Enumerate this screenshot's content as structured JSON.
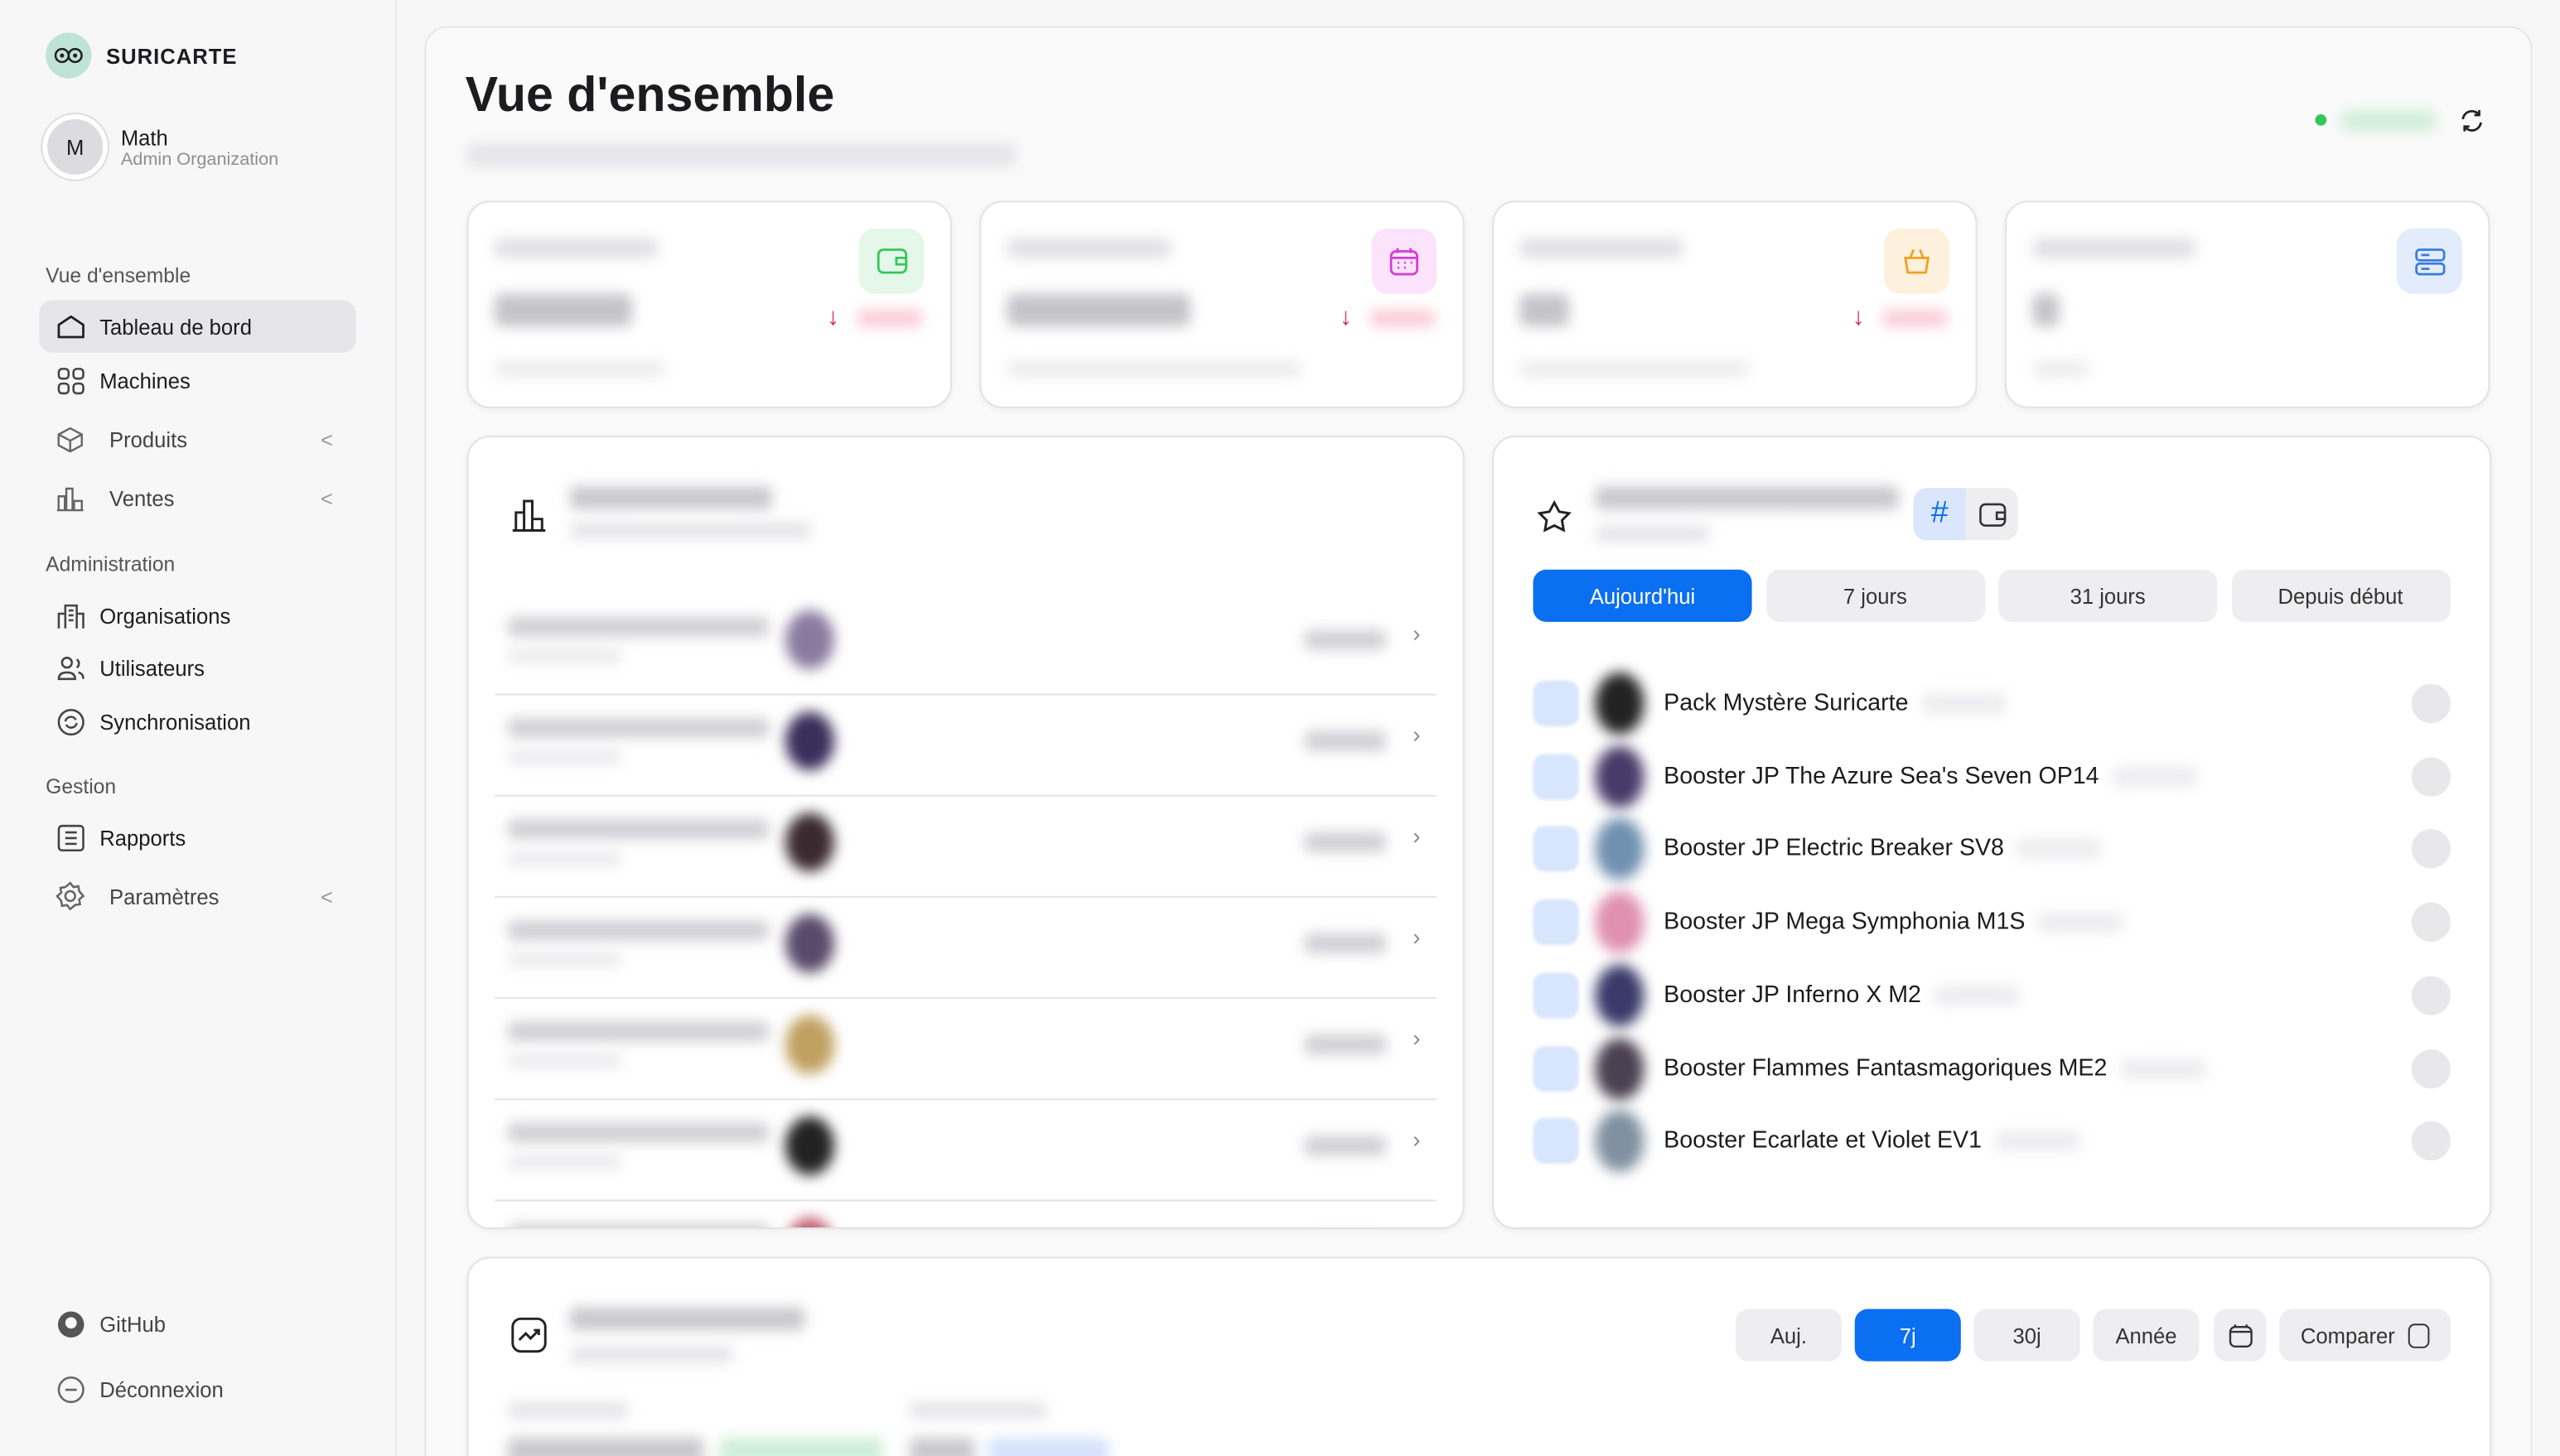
{
  "brand": {
    "name": "SURICARTE"
  },
  "user": {
    "initial": "M",
    "name": "Math",
    "role": "Admin Organization"
  },
  "sidebar": {
    "sections": [
      {
        "label": "Vue d'ensemble",
        "items": [
          {
            "label": "Tableau de bord",
            "icon": "home-icon",
            "active": true
          },
          {
            "label": "Machines",
            "icon": "grid-icon"
          },
          {
            "label": "Produits",
            "icon": "box-icon",
            "expandable": true
          },
          {
            "label": "Ventes",
            "icon": "bar-chart-icon",
            "expandable": true
          }
        ]
      },
      {
        "label": "Administration",
        "items": [
          {
            "label": "Organisations",
            "icon": "building-icon"
          },
          {
            "label": "Utilisateurs",
            "icon": "users-icon"
          },
          {
            "label": "Synchronisation",
            "icon": "sync-icon"
          }
        ]
      },
      {
        "label": "Gestion",
        "items": [
          {
            "label": "Rapports",
            "icon": "report-icon"
          },
          {
            "label": "Paramètres",
            "icon": "gear-icon",
            "expandable": true
          }
        ]
      }
    ],
    "footer": [
      {
        "label": "GitHub",
        "icon": "github-icon"
      },
      {
        "label": "Déconnexion",
        "icon": "logout-icon"
      }
    ],
    "chevron": "<"
  },
  "header": {
    "title": "Vue d'ensemble",
    "status_color": "#34c759"
  },
  "stats": [
    {
      "icon": "wallet-icon",
      "color": "#34c759",
      "bg": "#e4f7e9",
      "trend": "down"
    },
    {
      "icon": "calendar-icon",
      "color": "#d63bd6",
      "bg": "#fbe4fb",
      "trend": "down"
    },
    {
      "icon": "basket-icon",
      "color": "#f0a020",
      "bg": "#fdf0dc",
      "trend": "down"
    },
    {
      "icon": "server-icon",
      "color": "#3a7be0",
      "bg": "#e2ecfb"
    }
  ],
  "top_products": {
    "toggle": [
      {
        "label": "#",
        "active": true
      },
      {
        "icon": "wallet-icon"
      }
    ],
    "periods": [
      {
        "label": "Aujourd'hui",
        "active": true
      },
      {
        "label": "7 jours"
      },
      {
        "label": "31 jours"
      },
      {
        "label": "Depuis début"
      }
    ],
    "items": [
      "Pack Mystère Suricarte",
      "Booster JP The Azure Sea's Seven OP14",
      "Booster JP Electric Breaker SV8",
      "Booster JP Mega Symphonia M1S",
      "Booster JP Inferno X M2",
      "Booster Flammes Fantasmagoriques ME2",
      "Booster Ecarlate et Violet EV1"
    ]
  },
  "sales_volume": {
    "ranges": [
      {
        "label": "Auj."
      },
      {
        "label": "7j",
        "active": true
      },
      {
        "label": "30j"
      },
      {
        "label": "Année"
      }
    ],
    "compare_label": "Comparer"
  },
  "accent": "#0a6ff0"
}
